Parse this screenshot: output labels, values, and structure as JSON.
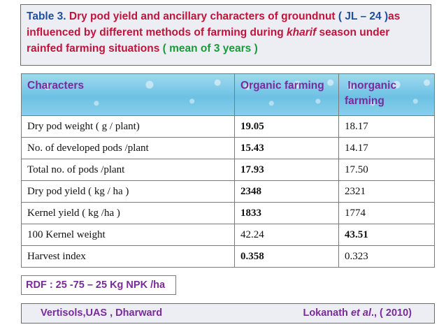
{
  "title": {
    "label": "Table 3.",
    "part1": "Dry pod yield and ancillary characters of groundnut",
    "variety": "( JL – 24 )",
    "part2": "as influenced by different methods of farming during",
    "season_italic": "kharif",
    "part3": "season under rainfed farming situations",
    "mean_note": "( mean of 3 years )"
  },
  "table": {
    "headers": [
      "Characters",
      "Organic farming",
      " Inorganic farming"
    ],
    "rows": [
      {
        "character": "Dry pod weight ( g / plant)",
        "organic": "19.05",
        "inorganic": "18.17"
      },
      {
        "character": "No. of developed pods /plant",
        "organic": "15.43",
        "inorganic": "14.17"
      },
      {
        "character": "Total no. of pods /plant",
        "organic": "17.93",
        "inorganic": "17.50"
      },
      {
        "character": "Dry pod yield ( kg / ha )",
        "organic": "2348",
        "inorganic": "2321"
      },
      {
        "character": "Kernel yield ( kg /ha )",
        "organic": "1833",
        "inorganic": "1774"
      },
      {
        "character": "100 Kernel weight",
        "organic": "42.24",
        "inorganic": "43.51"
      },
      {
        "character": "Harvest index",
        "organic": "0.358",
        "inorganic": "0.323"
      }
    ]
  },
  "rdf_note": "RDF : 25 -75 – 25 Kg NPK /ha",
  "source": {
    "location": "Vertisols,UAS , Dharward",
    "author": "Lokanath",
    "etal": "et al",
    "year": "., ( 2010)"
  }
}
